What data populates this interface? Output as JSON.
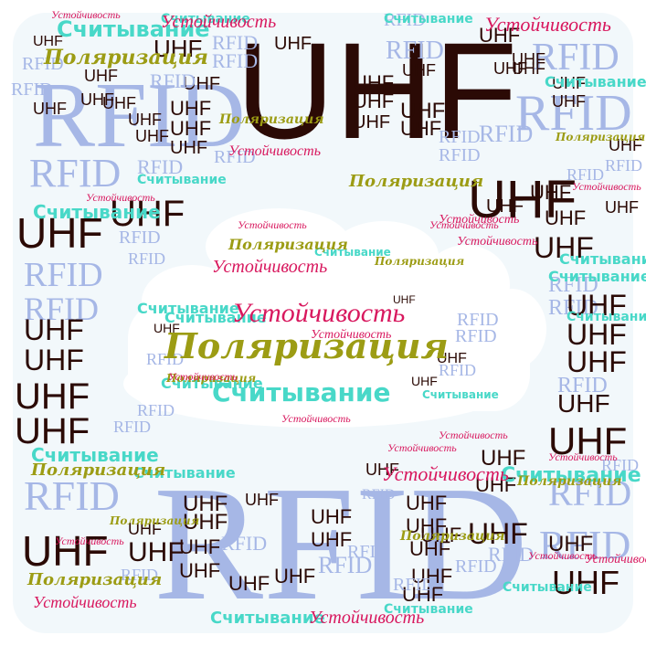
{
  "words": {
    "uhf": "UHF",
    "rfid": "RFID",
    "read": "Считывание",
    "polar": "Поляризация",
    "stab": "Устойчивость"
  },
  "colors": {
    "uhf": "#2b0a05",
    "rfid": "#a6b7e6",
    "read": "#48d8c8",
    "polar": "#9c9c14",
    "stab": "#d8185e",
    "backdrop": "#f2f8fb",
    "cloud": "#ffffff"
  }
}
